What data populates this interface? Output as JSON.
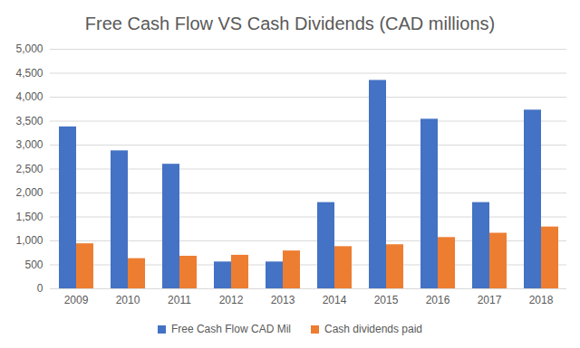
{
  "chart_data": {
    "type": "bar",
    "title": "Free Cash Flow VS Cash Dividends (CAD millions)",
    "categories": [
      "2009",
      "2010",
      "2011",
      "2012",
      "2013",
      "2014",
      "2015",
      "2016",
      "2017",
      "2018"
    ],
    "series": [
      {
        "name": "Free Cash Flow CAD Mil",
        "color": "#4472c4",
        "values": [
          3380,
          2880,
          2600,
          560,
          560,
          1800,
          4350,
          3540,
          1800,
          3730
        ]
      },
      {
        "name": "Cash dividends paid",
        "color": "#ed7d31",
        "values": [
          940,
          630,
          680,
          700,
          790,
          880,
          920,
          1070,
          1160,
          1290
        ]
      }
    ],
    "ylim": [
      0,
      5000
    ],
    "yticks": [
      0,
      500,
      {
        "value": 1000,
        "label": "1,000"
      },
      {
        "value": 1500,
        "label": "1,500"
      },
      {
        "value": 2000,
        "label": "2,000"
      },
      {
        "value": 2500,
        "label": "2,500"
      },
      {
        "value": 3000,
        "label": "3,000"
      },
      {
        "value": 3500,
        "label": "3,500"
      },
      {
        "value": 4000,
        "label": "4,000"
      },
      {
        "value": 4500,
        "label": "4,500"
      },
      {
        "value": 5000,
        "label": "5,000"
      }
    ],
    "grid": true,
    "legend": "bottom"
  }
}
